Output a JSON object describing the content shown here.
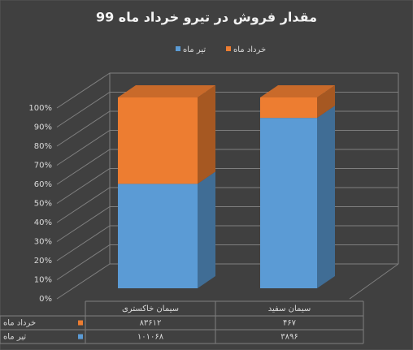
{
  "chart_data": {
    "type": "stacked-bar-3d-percent",
    "title": "مقدار فروش در تیرو خرداد ماه 99",
    "categories": [
      "سیمان خاکستری",
      "سیمان سفید"
    ],
    "series": [
      {
        "name": "تیر ماه",
        "color": "#5b9bd5",
        "values": [
          101068,
          3896
        ],
        "value_labels": [
          "۱۰۱۰۶۸",
          "۳۸۹۶"
        ]
      },
      {
        "name": "خرداد ماه",
        "color": "#ed7d31",
        "values": [
          83612,
          467
        ],
        "value_labels": [
          "۸۳۶۱۲",
          "۴۶۷"
        ]
      }
    ],
    "ylim": [
      0,
      100
    ],
    "yticks": [
      {
        "value": 0,
        "label": "0%"
      },
      {
        "value": 10,
        "label": "10%"
      },
      {
        "value": 20,
        "label": "20%"
      },
      {
        "value": 30,
        "label": "30%"
      },
      {
        "value": 40,
        "label": "40%"
      },
      {
        "value": 50,
        "label": "50%"
      },
      {
        "value": 60,
        "label": "60%"
      },
      {
        "value": 70,
        "label": "70%"
      },
      {
        "value": 80,
        "label": "80%"
      },
      {
        "value": 90,
        "label": "90%"
      },
      {
        "value": 100,
        "label": "100%"
      }
    ],
    "grid": true
  }
}
